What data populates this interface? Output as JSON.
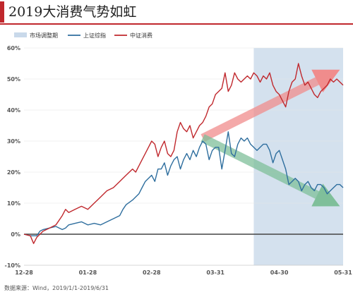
{
  "header": {
    "title": "2019大消费气势如虹"
  },
  "source_note": "数据来源：Wind，2019/1/1-2019/6/31",
  "colors": {
    "accent": "#c0282d",
    "series_red": "#c0282d",
    "series_blue": "#2e6e9e",
    "highlight_band": "#c9d9ea",
    "arrow_red": "#f08c8c",
    "arrow_green": "#7fbf9a"
  },
  "chart_data": {
    "type": "line",
    "title": "",
    "xlabel": "",
    "ylabel": "",
    "ylim": [
      -10,
      60
    ],
    "yticks": [
      -10,
      0,
      10,
      20,
      30,
      40,
      50,
      60
    ],
    "ytick_labels": [
      "-10%",
      "0%",
      "10%",
      "20%",
      "30%",
      "40%",
      "50%",
      "60%"
    ],
    "xlim": [
      0,
      1
    ],
    "xticks": [
      {
        "pos": 0.0,
        "label": "12-28"
      },
      {
        "pos": 0.2,
        "label": "01-28"
      },
      {
        "pos": 0.4,
        "label": "02-28"
      },
      {
        "pos": 0.6,
        "label": "03-31"
      },
      {
        "pos": 0.8,
        "label": "04-30"
      },
      {
        "pos": 1.0,
        "label": "05-31"
      }
    ],
    "legend": {
      "placement": "top",
      "items": [
        {
          "label": "市场调整期",
          "kind": "band"
        },
        {
          "label": "上证综指",
          "kind": "line",
          "series": 0
        },
        {
          "label": "中证消费",
          "kind": "line",
          "series": 1
        }
      ]
    },
    "highlight_band": {
      "x_start": 0.72,
      "x_end": 1.0,
      "ylim": [
        -10,
        60
      ]
    },
    "arrows": [
      {
        "color": "arrow_red",
        "from": [
          0.56,
          31
        ],
        "to": [
          0.99,
          53
        ]
      },
      {
        "color": "arrow_green",
        "from": [
          0.56,
          31
        ],
        "to": [
          0.99,
          9
        ]
      }
    ],
    "series": [
      {
        "name": "上证综指",
        "color": "series_blue",
        "x": [
          0.0,
          0.02,
          0.04,
          0.05,
          0.06,
          0.08,
          0.1,
          0.12,
          0.13,
          0.14,
          0.16,
          0.18,
          0.2,
          0.22,
          0.24,
          0.26,
          0.28,
          0.3,
          0.31,
          0.32,
          0.34,
          0.36,
          0.37,
          0.38,
          0.4,
          0.41,
          0.42,
          0.43,
          0.44,
          0.45,
          0.46,
          0.47,
          0.48,
          0.49,
          0.5,
          0.51,
          0.52,
          0.53,
          0.54,
          0.55,
          0.56,
          0.57,
          0.58,
          0.59,
          0.6,
          0.61,
          0.62,
          0.63,
          0.64,
          0.65,
          0.66,
          0.67,
          0.68,
          0.69,
          0.7,
          0.71,
          0.72,
          0.73,
          0.74,
          0.75,
          0.76,
          0.77,
          0.78,
          0.79,
          0.8,
          0.81,
          0.82,
          0.83,
          0.84,
          0.85,
          0.86,
          0.87,
          0.88,
          0.89,
          0.9,
          0.91,
          0.92,
          0.93,
          0.94,
          0.95,
          0.96,
          0.97,
          0.98,
          0.99,
          1.0
        ],
        "values": [
          0,
          -0.5,
          -0.5,
          1,
          1.5,
          2,
          2.5,
          1.5,
          2,
          3,
          3.5,
          4,
          3,
          3.5,
          3,
          4,
          5,
          6,
          8,
          9.5,
          11,
          13,
          15,
          17,
          19,
          17,
          21,
          21,
          23,
          19,
          22,
          24,
          25,
          21,
          24,
          26,
          24,
          27,
          25,
          28,
          30,
          29,
          24,
          27,
          28,
          28,
          21,
          27,
          33,
          26,
          25,
          29,
          31,
          30,
          31,
          29,
          28,
          27,
          28,
          29,
          29,
          27,
          23,
          26,
          27,
          24,
          21,
          16,
          17,
          18,
          17,
          14,
          16,
          17,
          15,
          14,
          16,
          16,
          15,
          13,
          14,
          15,
          16,
          16,
          15
        ]
      },
      {
        "name": "中证消费",
        "color": "series_red",
        "x": [
          0.0,
          0.02,
          0.03,
          0.04,
          0.05,
          0.06,
          0.08,
          0.1,
          0.12,
          0.13,
          0.14,
          0.16,
          0.18,
          0.2,
          0.22,
          0.24,
          0.26,
          0.28,
          0.3,
          0.32,
          0.34,
          0.35,
          0.36,
          0.37,
          0.38,
          0.39,
          0.4,
          0.41,
          0.42,
          0.43,
          0.44,
          0.45,
          0.46,
          0.47,
          0.48,
          0.49,
          0.5,
          0.51,
          0.52,
          0.53,
          0.54,
          0.55,
          0.56,
          0.57,
          0.58,
          0.59,
          0.6,
          0.61,
          0.62,
          0.63,
          0.64,
          0.65,
          0.66,
          0.67,
          0.68,
          0.69,
          0.7,
          0.71,
          0.72,
          0.73,
          0.74,
          0.75,
          0.76,
          0.77,
          0.78,
          0.79,
          0.8,
          0.81,
          0.82,
          0.83,
          0.84,
          0.85,
          0.86,
          0.87,
          0.88,
          0.89,
          0.9,
          0.91,
          0.92,
          0.93,
          0.94,
          0.95,
          0.96,
          0.97,
          0.98,
          0.99,
          1.0
        ],
        "values": [
          0,
          -0.5,
          -3,
          -1,
          0,
          1,
          2,
          3,
          6,
          8,
          7,
          8,
          9,
          8,
          10,
          12,
          14,
          15,
          17,
          19,
          21,
          20,
          22,
          24,
          26,
          28,
          30,
          29,
          25,
          28,
          30,
          26,
          25,
          27,
          33,
          36,
          34,
          33,
          35,
          31,
          33,
          35,
          36,
          38,
          41,
          42,
          45,
          46,
          47,
          52,
          46,
          48,
          52,
          50,
          49,
          50,
          51,
          50,
          52,
          51,
          49,
          51,
          50,
          52,
          48,
          46,
          45,
          43,
          41,
          46,
          49,
          50,
          55,
          51,
          48,
          49,
          47,
          45,
          44,
          46,
          47,
          48,
          50,
          49,
          50,
          49,
          48
        ]
      }
    ]
  }
}
